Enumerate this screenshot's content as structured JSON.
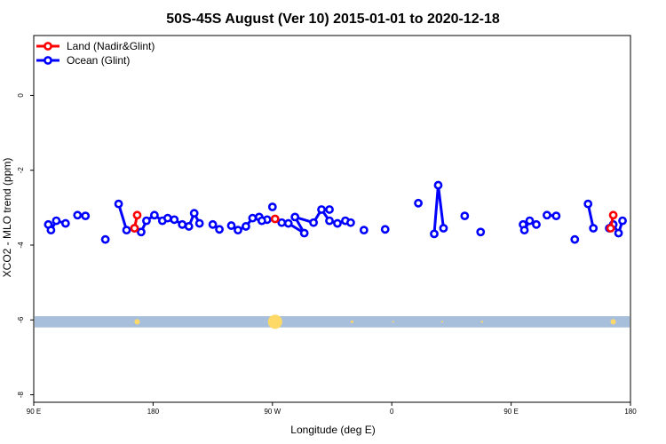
{
  "chart_data": {
    "type": "line",
    "title": "50S-45S August (Ver 10)   2015-01-01 to 2020-12-18",
    "xlabel": "Longitude (deg E)",
    "ylabel": "XCO2 - MLO trend (ppm)",
    "xlim": [
      90,
      540
    ],
    "ylim": [
      -8.2,
      1.6
    ],
    "x_ticks": [
      {
        "value": 90,
        "label": "90 E"
      },
      {
        "value": 180,
        "label": "180"
      },
      {
        "value": 270,
        "label": "90 W"
      },
      {
        "value": 360,
        "label": "0"
      },
      {
        "value": 450,
        "label": "90 E"
      },
      {
        "value": 540,
        "label": "180"
      }
    ],
    "y_ticks": [
      {
        "value": 0,
        "label": "0"
      },
      {
        "value": -2,
        "label": "-2"
      },
      {
        "value": -4,
        "label": "-4"
      },
      {
        "value": -6,
        "label": "-6"
      },
      {
        "value": -8,
        "label": "-8"
      }
    ],
    "legend_position": "top-left",
    "band": {
      "y_from": -6.2,
      "y_to": -5.9,
      "color": "#a8bfdc"
    },
    "band_markers": {
      "color": "#ffd966",
      "points": [
        {
          "x": 168,
          "size": 3
        },
        {
          "x": 272,
          "size": 8
        },
        {
          "x": 330,
          "size": 1.5
        },
        {
          "x": 361,
          "size": 1
        },
        {
          "x": 398,
          "size": 1
        },
        {
          "x": 428,
          "size": 1.2
        },
        {
          "x": 527,
          "size": 3
        }
      ]
    },
    "series": [
      {
        "name": "Land (Nadir&Glint)",
        "color": "#ff0000",
        "segments": [
          {
            "x": [
              166,
              168
            ],
            "y": [
              -3.55,
              -3.2
            ]
          },
          {
            "x": [
              272
            ],
            "y": [
              -3.3
            ]
          },
          {
            "x": [
              525,
              527
            ],
            "y": [
              -3.55,
              -3.2
            ]
          }
        ]
      },
      {
        "name": "Ocean (Glint)",
        "color": "#0000ff",
        "segments": [
          {
            "x": [
              101,
              103,
              107,
              114
            ],
            "y": [
              -3.45,
              -3.6,
              -3.35,
              -3.42
            ]
          },
          {
            "x": [
              123,
              129
            ],
            "y": [
              -3.2,
              -3.22
            ]
          },
          {
            "x": [
              144
            ],
            "y": [
              -3.85
            ]
          },
          {
            "x": [
              154,
              160
            ],
            "y": [
              -2.9,
              -3.6
            ]
          },
          {
            "x": [
              166,
              171,
              175,
              181,
              187,
              191,
              196,
              202,
              207,
              211,
              215
            ],
            "y": [
              -3.55,
              -3.65,
              -3.35,
              -3.2,
              -3.35,
              -3.28,
              -3.32,
              -3.45,
              -3.5,
              -3.15,
              -3.42
            ]
          },
          {
            "x": [
              225,
              230
            ],
            "y": [
              -3.45,
              -3.58
            ]
          },
          {
            "x": [
              239,
              244,
              250,
              255,
              260,
              266
            ],
            "y": [
              -3.48,
              -3.6,
              -3.5,
              -3.28,
              -3.25,
              -3.32
            ]
          },
          {
            "x": [
              270
            ],
            "y": [
              -2.98
            ]
          },
          {
            "x": [
              282,
              294,
              287,
              301,
              307,
              313,
              319,
              325,
              329
            ],
            "y": [
              -3.42,
              -3.68,
              -3.25,
              -3.4,
              -3.05,
              -3.35,
              -3.42,
              -3.35,
              -3.4
            ]
          },
          {
            "x": [
              262
            ],
            "y": [
              -3.35
            ]
          },
          {
            "x": [
              277
            ],
            "y": [
              -3.4
            ]
          },
          {
            "x": [
              339
            ],
            "y": [
              -3.6
            ]
          },
          {
            "x": [
              313
            ],
            "y": [
              -3.05
            ]
          },
          {
            "x": [
              355
            ],
            "y": [
              -3.58
            ]
          },
          {
            "x": [
              380
            ],
            "y": [
              -2.88
            ]
          },
          {
            "x": [
              392,
              395,
              399
            ],
            "y": [
              -3.7,
              -2.4,
              -3.55
            ]
          },
          {
            "x": [
              415
            ],
            "y": [
              -3.22
            ]
          },
          {
            "x": [
              427
            ],
            "y": [
              -3.65
            ]
          },
          {
            "x": [
              459,
              460,
              464,
              469
            ],
            "y": [
              -3.45,
              -3.6,
              -3.35,
              -3.45
            ]
          },
          {
            "x": [
              477,
              484
            ],
            "y": [
              -3.2,
              -3.22
            ]
          },
          {
            "x": [
              498
            ],
            "y": [
              -3.85
            ]
          },
          {
            "x": [
              508,
              512
            ],
            "y": [
              -2.9,
              -3.55
            ]
          },
          {
            "x": [
              524,
              527,
              531,
              534
            ],
            "y": [
              -3.55,
              -3.45,
              -3.68,
              -3.35
            ]
          }
        ]
      }
    ]
  }
}
